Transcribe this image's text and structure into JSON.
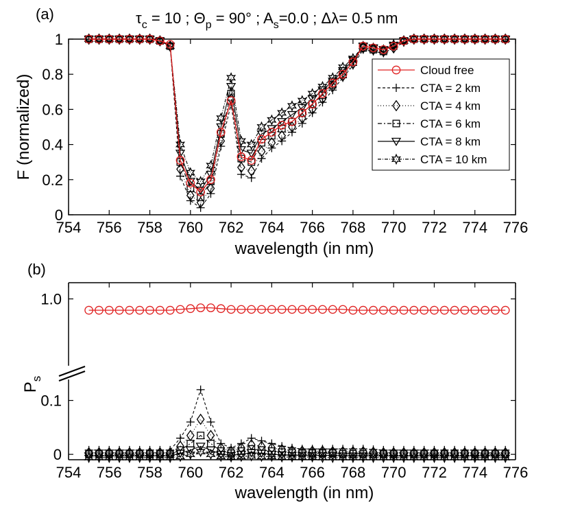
{
  "colors": {
    "cloud_free": "#e02020",
    "cta": "#000000"
  },
  "chart_data": [
    {
      "type": "line",
      "panel_label": "(a)",
      "title_parts": {
        "tau": "τ",
        "tau_sub": "c",
        "tau_val": " = 10 ; ",
        "theta": "Θ",
        "theta_sub": "p",
        "theta_val": " = 90° ; A",
        "as_sub": "s",
        "as_val": "=0.0 ; ",
        "dl": "Δλ",
        "dl_val": "= 0.5 nm"
      },
      "xlabel": "wavelength (in nm)",
      "ylabel": "F (normalized)",
      "xlim": [
        754,
        776
      ],
      "ylim": [
        0,
        1
      ],
      "xticks": [
        "754",
        "756",
        "758",
        "760",
        "762",
        "764",
        "766",
        "768",
        "770",
        "772",
        "774",
        "776"
      ],
      "yticks": [
        "0",
        "0.2",
        "0.4",
        "0.6",
        "0.8",
        "1"
      ],
      "x": [
        755.0,
        755.5,
        756.0,
        756.5,
        757.0,
        757.5,
        758.0,
        758.5,
        759.0,
        759.5,
        760.0,
        760.5,
        761.0,
        761.5,
        762.0,
        762.5,
        763.0,
        763.5,
        764.0,
        764.5,
        765.0,
        765.5,
        766.0,
        766.5,
        767.0,
        767.5,
        768.0,
        768.5,
        769.0,
        769.5,
        770.0,
        770.5,
        771.0,
        771.5,
        772.0,
        772.5,
        773.0,
        773.5,
        774.0,
        774.5,
        775.0,
        775.5
      ],
      "series": [
        {
          "name": "Cloud free",
          "marker": "circle",
          "dash": "",
          "values": [
            1.0,
            1.0,
            1.0,
            1.0,
            1.0,
            1.0,
            1.0,
            0.99,
            0.97,
            0.31,
            0.18,
            0.13,
            0.2,
            0.47,
            0.65,
            0.33,
            0.31,
            0.43,
            0.47,
            0.51,
            0.53,
            0.58,
            0.63,
            0.69,
            0.75,
            0.8,
            0.87,
            0.96,
            0.95,
            0.94,
            0.96,
            0.99,
            1.0,
            1.0,
            1.0,
            1.0,
            1.0,
            1.0,
            1.0,
            1.0,
            1.0,
            1.0
          ]
        },
        {
          "name": "CTA = 2 km",
          "marker": "plus",
          "dash": "4,3",
          "values": [
            1.0,
            1.0,
            1.0,
            1.0,
            1.0,
            1.0,
            1.0,
            0.99,
            0.96,
            0.22,
            0.08,
            0.04,
            0.12,
            0.39,
            0.63,
            0.23,
            0.21,
            0.32,
            0.38,
            0.42,
            0.47,
            0.52,
            0.58,
            0.64,
            0.71,
            0.78,
            0.85,
            0.94,
            0.93,
            0.92,
            0.95,
            0.98,
            1.0,
            1.0,
            1.0,
            1.0,
            1.0,
            1.0,
            1.0,
            1.0,
            1.0,
            1.0
          ]
        },
        {
          "name": "CTA = 4 km",
          "marker": "diamond",
          "dash": "1,3",
          "values": [
            1.0,
            1.0,
            1.0,
            1.0,
            1.0,
            1.0,
            1.0,
            0.99,
            0.96,
            0.26,
            0.11,
            0.07,
            0.15,
            0.42,
            0.66,
            0.27,
            0.25,
            0.36,
            0.41,
            0.45,
            0.5,
            0.55,
            0.6,
            0.66,
            0.73,
            0.79,
            0.86,
            0.95,
            0.94,
            0.93,
            0.95,
            0.99,
            1.0,
            1.0,
            1.0,
            1.0,
            1.0,
            1.0,
            1.0,
            1.0,
            1.0,
            1.0
          ]
        },
        {
          "name": "CTA = 6 km",
          "marker": "square",
          "dash": "6,3,2,3",
          "values": [
            1.0,
            1.0,
            1.0,
            1.0,
            1.0,
            1.0,
            1.0,
            0.99,
            0.96,
            0.3,
            0.15,
            0.1,
            0.19,
            0.46,
            0.69,
            0.32,
            0.3,
            0.41,
            0.45,
            0.49,
            0.53,
            0.58,
            0.63,
            0.68,
            0.74,
            0.8,
            0.87,
            0.95,
            0.94,
            0.93,
            0.96,
            0.99,
            1.0,
            1.0,
            1.0,
            1.0,
            1.0,
            1.0,
            1.0,
            1.0,
            1.0,
            1.0
          ]
        },
        {
          "name": "CTA = 8 km",
          "marker": "triangle",
          "dash": "",
          "values": [
            1.0,
            1.0,
            1.0,
            1.0,
            1.0,
            1.0,
            1.0,
            0.99,
            0.96,
            0.35,
            0.19,
            0.14,
            0.23,
            0.5,
            0.73,
            0.37,
            0.35,
            0.46,
            0.49,
            0.53,
            0.57,
            0.61,
            0.66,
            0.71,
            0.76,
            0.82,
            0.88,
            0.96,
            0.95,
            0.94,
            0.96,
            0.99,
            1.0,
            1.0,
            1.0,
            1.0,
            1.0,
            1.0,
            1.0,
            1.0,
            1.0,
            1.0
          ]
        },
        {
          "name": "CTA = 10 km",
          "marker": "star",
          "dash": "5,2,1,2",
          "values": [
            1.0,
            1.0,
            1.0,
            1.0,
            1.0,
            1.0,
            1.0,
            0.99,
            0.96,
            0.4,
            0.24,
            0.19,
            0.28,
            0.55,
            0.78,
            0.42,
            0.4,
            0.5,
            0.54,
            0.58,
            0.62,
            0.65,
            0.69,
            0.73,
            0.78,
            0.84,
            0.89,
            0.96,
            0.95,
            0.94,
            0.97,
            0.99,
            1.0,
            1.0,
            1.0,
            1.0,
            1.0,
            1.0,
            1.0,
            1.0,
            1.0,
            1.0
          ]
        }
      ],
      "legend": "inside-right"
    },
    {
      "type": "line",
      "panel_label": "(b)",
      "xlabel": "wavelength (in nm)",
      "ylabel_main": "P",
      "ylabel_sub": "s",
      "xlim": [
        754,
        776
      ],
      "broken_y_axis": true,
      "upper_ylim": [
        0.6,
        1.1
      ],
      "lower_ylim": [
        -0.01,
        0.13
      ],
      "upper_yticks": [
        "1.0"
      ],
      "lower_yticks": [
        "0.1",
        "0"
      ],
      "xticks": [
        "754",
        "756",
        "758",
        "760",
        "762",
        "764",
        "766",
        "768",
        "770",
        "772",
        "774",
        "776"
      ],
      "x": [
        755.0,
        755.5,
        756.0,
        756.5,
        757.0,
        757.5,
        758.0,
        758.5,
        759.0,
        759.5,
        760.0,
        760.5,
        761.0,
        761.5,
        762.0,
        762.5,
        763.0,
        763.5,
        764.0,
        764.5,
        765.0,
        765.5,
        766.0,
        766.5,
        767.0,
        767.5,
        768.0,
        768.5,
        769.0,
        769.5,
        770.0,
        770.5,
        771.0,
        771.5,
        772.0,
        772.5,
        773.0,
        773.5,
        774.0,
        774.5,
        775.0,
        775.5
      ],
      "series": [
        {
          "name": "Cloud free",
          "marker": "circle",
          "dash": "",
          "values": [
            0.93,
            0.93,
            0.93,
            0.93,
            0.93,
            0.93,
            0.93,
            0.93,
            0.93,
            0.935,
            0.94,
            0.945,
            0.945,
            0.94,
            0.935,
            0.935,
            0.935,
            0.935,
            0.935,
            0.935,
            0.935,
            0.935,
            0.935,
            0.935,
            0.935,
            0.935,
            0.93,
            0.93,
            0.93,
            0.93,
            0.93,
            0.93,
            0.93,
            0.93,
            0.93,
            0.93,
            0.93,
            0.93,
            0.93,
            0.93,
            0.93,
            0.93
          ]
        },
        {
          "name": "CTA = 2 km",
          "marker": "plus",
          "dash": "4,3",
          "values": [
            0.008,
            0.008,
            0.008,
            0.008,
            0.008,
            0.008,
            0.008,
            0.008,
            0.008,
            0.03,
            0.06,
            0.12,
            0.06,
            0.02,
            0.012,
            0.02,
            0.03,
            0.025,
            0.02,
            0.015,
            0.012,
            0.01,
            0.01,
            0.01,
            0.01,
            0.01,
            0.01,
            0.01,
            0.009,
            0.008,
            0.008,
            0.008,
            0.008,
            0.008,
            0.008,
            0.008,
            0.008,
            0.008,
            0.008,
            0.008,
            0.008,
            0.008
          ]
        },
        {
          "name": "CTA = 4 km",
          "marker": "diamond",
          "dash": "1,3",
          "values": [
            0.003,
            0.003,
            0.003,
            0.003,
            0.003,
            0.003,
            0.003,
            0.003,
            0.003,
            0.015,
            0.035,
            0.065,
            0.035,
            0.012,
            0.006,
            0.012,
            0.018,
            0.015,
            0.012,
            0.009,
            0.007,
            0.006,
            0.006,
            0.006,
            0.005,
            0.005,
            0.005,
            0.005,
            0.004,
            0.003,
            0.003,
            0.003,
            0.003,
            0.003,
            0.003,
            0.003,
            0.003,
            0.003,
            0.003,
            0.003,
            0.003,
            0.003
          ]
        },
        {
          "name": "CTA = 6 km",
          "marker": "square",
          "dash": "6,3,2,3",
          "values": [
            0.0,
            0.0,
            0.0,
            0.0,
            0.0,
            0.0,
            0.0,
            0.0,
            0.0,
            0.008,
            0.02,
            0.035,
            0.02,
            0.006,
            0.002,
            0.006,
            0.01,
            0.008,
            0.006,
            0.004,
            0.003,
            0.002,
            0.002,
            0.002,
            0.002,
            0.001,
            0.001,
            0.001,
            0.0,
            0.0,
            0.0,
            0.0,
            0.0,
            0.0,
            0.0,
            0.0,
            0.0,
            0.0,
            0.0,
            0.0,
            0.0,
            0.0
          ]
        },
        {
          "name": "CTA = 8 km",
          "marker": "triangle",
          "dash": "",
          "values": [
            -0.003,
            -0.003,
            -0.003,
            -0.003,
            -0.003,
            -0.003,
            -0.003,
            -0.003,
            -0.003,
            0.002,
            0.008,
            0.015,
            0.008,
            0.0,
            -0.002,
            0.0,
            0.003,
            0.002,
            0.0,
            -0.001,
            -0.002,
            -0.002,
            -0.002,
            -0.002,
            -0.002,
            -0.003,
            -0.003,
            -0.003,
            -0.003,
            -0.003,
            -0.003,
            -0.003,
            -0.003,
            -0.003,
            -0.003,
            -0.003,
            -0.003,
            -0.003,
            -0.003,
            -0.003,
            -0.003,
            -0.003
          ]
        },
        {
          "name": "CTA = 10 km",
          "marker": "star",
          "dash": "5,2,1,2",
          "values": [
            -0.006,
            -0.006,
            -0.006,
            -0.006,
            -0.006,
            -0.006,
            -0.006,
            -0.006,
            -0.006,
            -0.004,
            0.0,
            0.005,
            0.0,
            -0.004,
            -0.005,
            -0.004,
            -0.003,
            -0.004,
            -0.004,
            -0.005,
            -0.005,
            -0.005,
            -0.005,
            -0.006,
            -0.006,
            -0.006,
            -0.006,
            -0.006,
            -0.006,
            -0.006,
            -0.006,
            -0.006,
            -0.006,
            -0.006,
            -0.006,
            -0.006,
            -0.006,
            -0.006,
            -0.006,
            -0.006,
            -0.006,
            -0.006
          ]
        }
      ]
    }
  ]
}
